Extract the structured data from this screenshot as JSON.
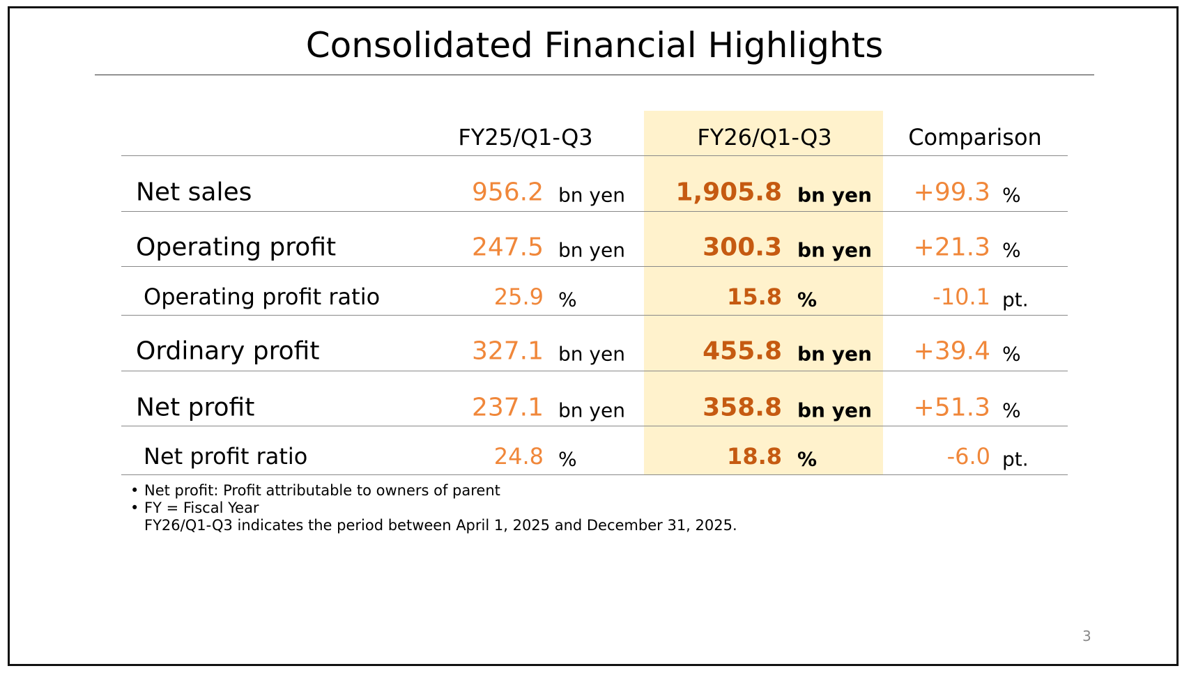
{
  "title": "Consolidated Financial Highlights",
  "colors": {
    "value": "#F0873A",
    "value_bold": "#C55A11",
    "highlight": "#FFF2CC"
  },
  "columns": [
    "FY25/Q1-Q3",
    "FY26/Q1-Q3",
    "Comparison"
  ],
  "rows": [
    {
      "label": "Net sales",
      "fy25": "956.2",
      "fy25_unit": "bn yen",
      "fy26": "1,905.8",
      "fy26_unit": "bn yen",
      "cmp": "+99.3",
      "cmp_unit": "%"
    },
    {
      "label": "Operating profit",
      "fy25": "247.5",
      "fy25_unit": "bn yen",
      "fy26": "300.3",
      "fy26_unit": "bn yen",
      "cmp": "+21.3",
      "cmp_unit": "%"
    },
    {
      "label": "Operating profit ratio",
      "fy25": "25.9",
      "fy25_unit": "%",
      "fy26": "15.8",
      "fy26_unit": "%",
      "cmp": "-10.1",
      "cmp_unit": "pt."
    },
    {
      "label": "Ordinary profit",
      "fy25": "327.1",
      "fy25_unit": "bn yen",
      "fy26": "455.8",
      "fy26_unit": "bn yen",
      "cmp": "+39.4",
      "cmp_unit": "%"
    },
    {
      "label": "Net profit",
      "fy25": "237.1",
      "fy25_unit": "bn yen",
      "fy26": "358.8",
      "fy26_unit": "bn yen",
      "cmp": "+51.3",
      "cmp_unit": "%"
    },
    {
      "label": "Net profit ratio",
      "fy25": "24.8",
      "fy25_unit": "%",
      "fy26": "18.8",
      "fy26_unit": "%",
      "cmp": "-6.0",
      "cmp_unit": "pt."
    }
  ],
  "notes": [
    "Net profit: Profit attributable to owners of parent",
    "FY = Fiscal Year",
    "FY26/Q1-Q3 indicates the period between April 1, 2025 and December 31, 2025."
  ],
  "page_number": "3"
}
